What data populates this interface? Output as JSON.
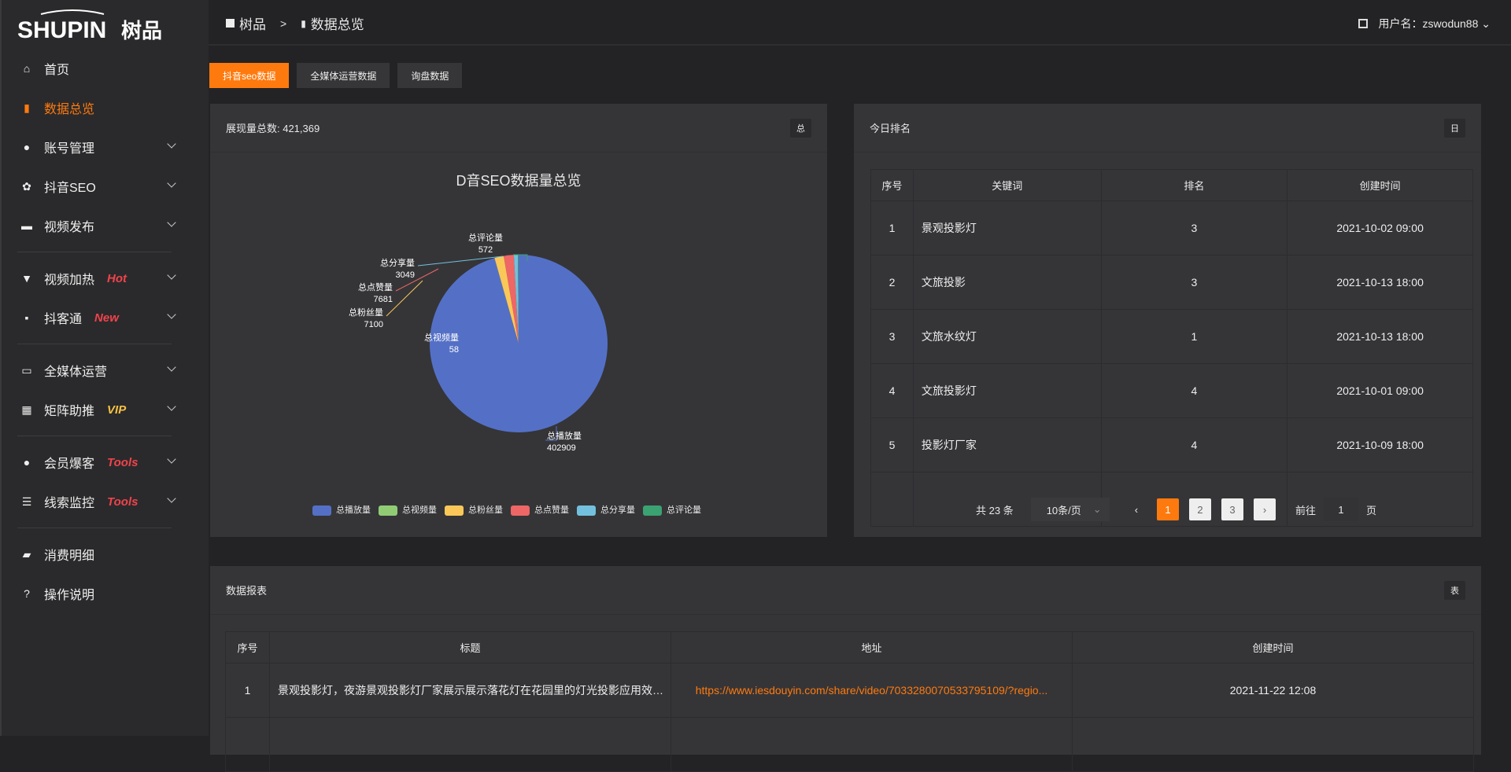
{
  "brand": {
    "logo_text": "SHUPIN 树品",
    "accent": "#ff7a0e"
  },
  "sidebar": {
    "items": [
      {
        "label": "首页",
        "icon": "home-icon"
      },
      {
        "label": "数据总览",
        "icon": "bar-chart-icon",
        "active": true
      },
      {
        "label": "账号管理",
        "icon": "user-icon",
        "expand": true
      },
      {
        "label": "抖音SEO",
        "icon": "gear-icon",
        "expand": true
      },
      {
        "label": "视频发布",
        "icon": "camera-icon",
        "expand": true
      },
      {
        "label": "视频加热",
        "icon": "flag-icon",
        "tag": "Hot",
        "tag_color": "#f0434b",
        "expand": true
      },
      {
        "label": "抖客通",
        "icon": "chat-icon",
        "tag": "New",
        "tag_color": "#f0434b",
        "expand": true
      },
      {
        "label": "全媒体运营",
        "icon": "monitor-icon",
        "expand": true
      },
      {
        "label": "矩阵助推",
        "icon": "grid-icon",
        "tag": "VIP",
        "tag_color": "#f5c242",
        "expand": true
      },
      {
        "label": "会员爆客",
        "icon": "user-icon",
        "tag": "Tools",
        "tag_color": "#f0434b",
        "expand": true
      },
      {
        "label": "线索监控",
        "icon": "sliders-icon",
        "tag": "Tools",
        "tag_color": "#f0434b",
        "expand": true
      },
      {
        "label": "消费明细",
        "icon": "wallet-icon"
      },
      {
        "label": "操作说明",
        "icon": "help-icon"
      }
    ]
  },
  "header": {
    "breadcrumb": [
      "树品",
      ">",
      "数据总览"
    ],
    "user_label": "用户名：zswodun88"
  },
  "tabs": [
    "抖音seo数据",
    "全媒体运营数据",
    "询盘数据"
  ],
  "summary": {
    "title": "展现量总数: 421,369",
    "badge": "总"
  },
  "chart_data": {
    "type": "pie",
    "title": "D音SEO数据量总览",
    "legend_position": "bottom",
    "labels": [
      "总播放量",
      "总视频量",
      "总粉丝量",
      "总点赞量",
      "总分享量",
      "总评论量"
    ],
    "values": [
      402909,
      58,
      7100,
      7681,
      3049,
      572
    ],
    "colors": [
      "#5470c6",
      "#91cc75",
      "#fac858",
      "#ee6666",
      "#73c0de",
      "#3ba272"
    ]
  },
  "ranking": {
    "title": "今日排名",
    "badge": "日",
    "columns": [
      "序号",
      "关键词",
      "排名",
      "创建时间"
    ],
    "rows": [
      [
        "1",
        "景观投影灯",
        "3",
        "2021-10-02 09:00"
      ],
      [
        "2",
        "文旅投影",
        "3",
        "2021-10-13 18:00"
      ],
      [
        "3",
        "文旅水纹灯",
        "1",
        "2021-10-13 18:00"
      ],
      [
        "4",
        "文旅投影灯",
        "4",
        "2021-10-01 09:00"
      ],
      [
        "5",
        "投影灯厂家",
        "4",
        "2021-10-09 18:00"
      ]
    ],
    "pager": {
      "total": "共 23 条",
      "page_size": "10条/页",
      "pages": [
        "1",
        "2",
        "3"
      ],
      "current": 1,
      "goto_label": "前往",
      "goto_value": "1",
      "goto_suffix": "页"
    }
  },
  "report": {
    "title": "数据报表",
    "badge": "表",
    "columns": [
      "序号",
      "标题",
      "地址",
      "创建时间"
    ],
    "rows": [
      [
        "1",
        "景观投影灯，夜游景观投影灯厂家展示展示落花灯在花园里的灯光投影应用效果 #",
        "https://www.iesdouyin.com/share/video/7033280070533795109/?regio...",
        "2021-11-22 12:08"
      ]
    ]
  }
}
